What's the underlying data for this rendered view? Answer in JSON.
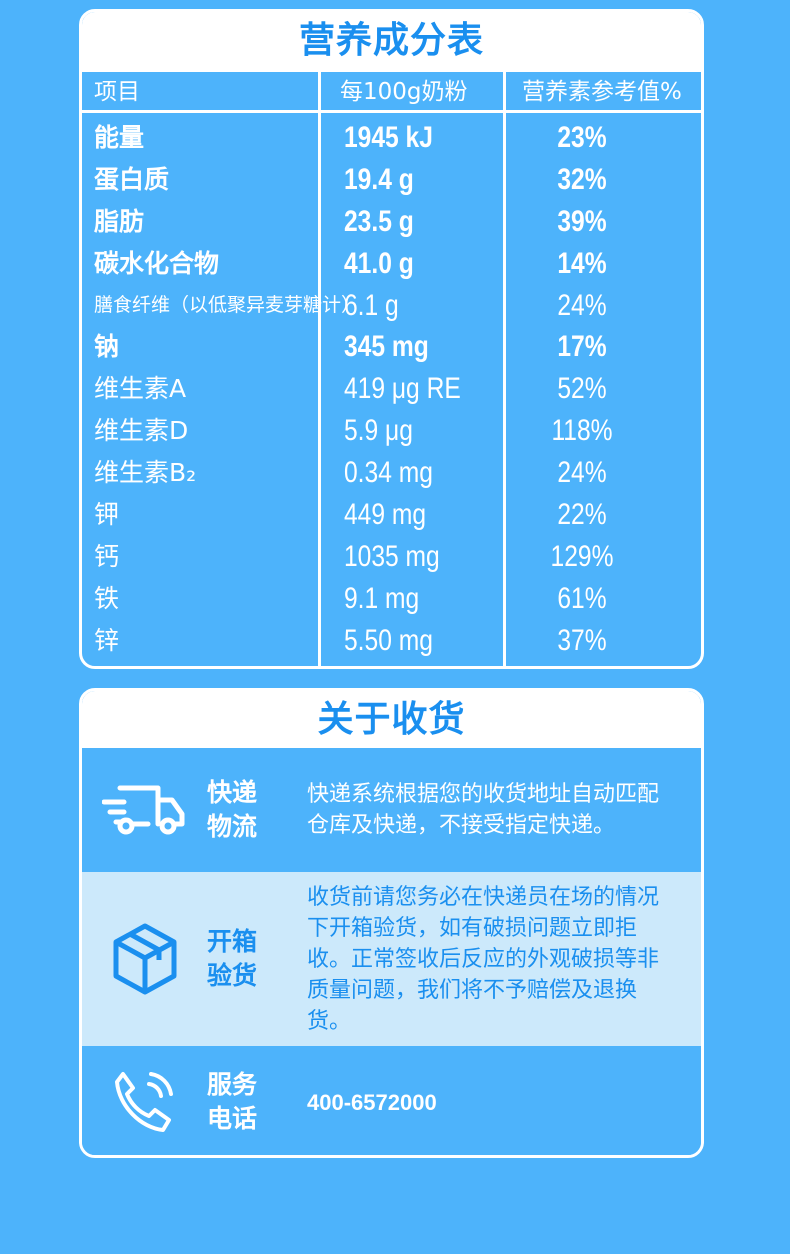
{
  "nutrition": {
    "title": "营养成分表",
    "headers": [
      "项目",
      "每100g奶粉",
      "营养素参考值%"
    ],
    "rows": [
      {
        "name": "能量",
        "value": "1945 kJ",
        "nrv": "23%",
        "bold": true
      },
      {
        "name": "蛋白质",
        "value": "19.4 g",
        "nrv": "32%",
        "bold": true
      },
      {
        "name": "脂肪",
        "value": "23.5 g",
        "nrv": "39%",
        "bold": true
      },
      {
        "name": "碳水化合物",
        "value": "41.0 g",
        "nrv": "14%",
        "bold": true
      },
      {
        "name": "膳食纤维（以低聚异麦芽糖计）",
        "value": "6.1 g",
        "nrv": "24%",
        "bold": false
      },
      {
        "name": "钠",
        "value": "345 mg",
        "nrv": "17%",
        "bold": true
      },
      {
        "name": "维生素A",
        "value": "419 μg RE",
        "nrv": "52%",
        "bold": false
      },
      {
        "name": "维生素D",
        "value": "5.9 μg",
        "nrv": "118%",
        "bold": false
      },
      {
        "name": "维生素B₂",
        "value": "0.34 mg",
        "nrv": "24%",
        "bold": false
      },
      {
        "name": "钾",
        "value": "449 mg",
        "nrv": "22%",
        "bold": false
      },
      {
        "name": "钙",
        "value": "1035 mg",
        "nrv": "129%",
        "bold": false
      },
      {
        "name": "铁",
        "value": "9.1 mg",
        "nrv": "61%",
        "bold": false
      },
      {
        "name": "锌",
        "value": "5.50 mg",
        "nrv": "37%",
        "bold": false
      }
    ]
  },
  "delivery": {
    "title": "关于收货",
    "express": {
      "label1": "快递",
      "label2": "物流",
      "text": "快递系统根据您的收货地址自动匹配仓库及快递，不接受指定快递。",
      "icon": "truck-icon"
    },
    "unbox": {
      "label1": "开箱",
      "label2": "验货",
      "text": "收货前请您务必在快递员在场的情况下开箱验货，如有破损问题立即拒收。正常签收后反应的外观破损等非质量问题，我们将不予赔偿及退换货。",
      "icon": "box-icon"
    },
    "service": {
      "label1": "服务",
      "label2": "电话",
      "phone": "400-6572000",
      "icon": "phone-icon"
    }
  },
  "colors": {
    "background": "#4db3fb",
    "accent": "#1a8fef",
    "light": "#cce9fb"
  }
}
